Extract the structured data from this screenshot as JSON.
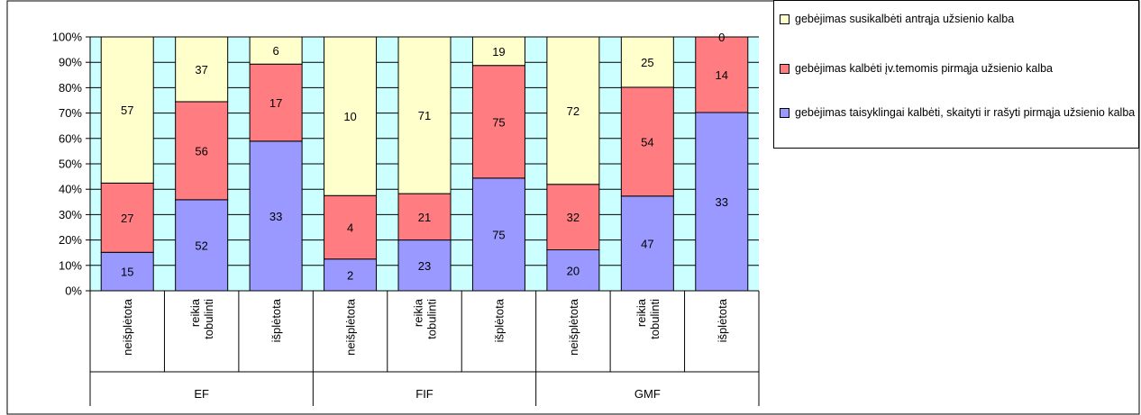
{
  "chart_data": {
    "type": "bar",
    "stacked": "percent",
    "groups": [
      "EF",
      "FIF",
      "GMF"
    ],
    "categories": [
      "neišplėtota",
      "reikia tobulinti",
      "išplėtota",
      "neišplėtota",
      "reikia tobulinti",
      "išplėtota",
      "neišplėtota",
      "reikia tobulinti",
      "išplėtota"
    ],
    "category_group": [
      "EF",
      "EF",
      "EF",
      "FIF",
      "FIF",
      "FIF",
      "GMF",
      "GMF",
      "GMF"
    ],
    "series": [
      {
        "name": "gebėjimas taisyklingai kalbėti, skaityti ir rašyti pirmąja užsienio kalba",
        "color": "#9999ff",
        "values": [
          15,
          52,
          33,
          2,
          23,
          75,
          20,
          47,
          33
        ]
      },
      {
        "name": "gebėjimas kalbėti įv.temomis pirmąja užsienio kalba",
        "color": "#ff7c80",
        "values": [
          27,
          56,
          17,
          4,
          21,
          75,
          32,
          54,
          14
        ]
      },
      {
        "name": "gebėjimas susikalbėti antrąja užsienio kalba",
        "color": "#ffffcc",
        "values": [
          57,
          37,
          6,
          10,
          71,
          19,
          72,
          25,
          0
        ]
      }
    ],
    "legend_order": [
      2,
      1,
      0
    ],
    "ylim": [
      0,
      100
    ],
    "ytick_labels": [
      "0%",
      "10%",
      "20%",
      "30%",
      "40%",
      "50%",
      "60%",
      "70%",
      "80%",
      "90%",
      "100%"
    ],
    "xlabel": "",
    "ylabel": "",
    "title": "",
    "plot_background": "#ccffff",
    "grid": true,
    "legend_position": "top-right"
  }
}
